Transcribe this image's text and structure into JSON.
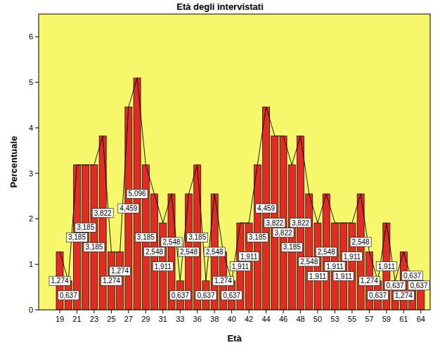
{
  "chart_data": {
    "type": "bar",
    "title": "Età degli intervistati",
    "x_label": "Età",
    "y_label": "Percentuale",
    "categories": [
      "19",
      null,
      "21",
      null,
      "23",
      null,
      "25",
      null,
      "27",
      null,
      "29",
      null,
      "31",
      null,
      "33",
      null,
      "36",
      null,
      "38",
      null,
      "40",
      null,
      "42",
      null,
      "44",
      null,
      "46",
      null,
      "48",
      null,
      "50",
      null,
      "53",
      null,
      "55",
      null,
      "57",
      null,
      "59",
      null,
      "61",
      null,
      "64"
    ],
    "values": [
      1.274,
      0.637,
      3.185,
      3.185,
      3.185,
      3.822,
      1.274,
      1.274,
      4.459,
      5.096,
      3.185,
      2.548,
      1.911,
      2.548,
      0.637,
      2.548,
      3.185,
      0.637,
      2.548,
      1.274,
      0.637,
      1.911,
      1.911,
      3.185,
      4.459,
      3.822,
      3.822,
      3.185,
      3.822,
      2.548,
      1.911,
      2.548,
      1.911,
      1.911,
      1.911,
      2.548,
      1.274,
      0.637,
      1.911,
      0.637,
      1.274,
      0.637,
      0.637
    ],
    "value_labels": [
      "1,274",
      "0,637",
      "3,185",
      "3,185",
      "3,185",
      "3,822",
      "1,274",
      "1,274",
      "4,459",
      "5,096",
      "3,185",
      "2,548",
      "1,911",
      "2,548",
      "0,637",
      "2,548",
      "3,185",
      "0,637",
      "2,548",
      "1,274",
      "0,637",
      "1,911",
      "1,911",
      "3,185",
      "4,459",
      "3,822",
      "3,822",
      "3,185",
      "3,822",
      "2,548",
      "1,911",
      "2,548",
      "1,911",
      "1,911",
      "1,911",
      "2,548",
      "1,274",
      "0,637",
      "1,911",
      "0,637",
      "1,274",
      "0,637",
      "0,637"
    ],
    "color": "#e32b26",
    "line_style": "solid",
    "data_labels": true,
    "ylim": [
      0,
      6.5
    ],
    "yticks": [
      0,
      1,
      2,
      3,
      4,
      5,
      6
    ],
    "grid": false
  }
}
